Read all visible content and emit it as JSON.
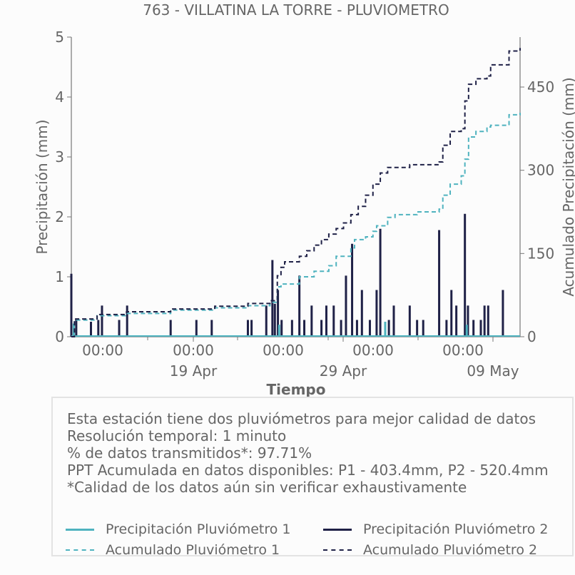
{
  "chart_data": {
    "type": "line",
    "title": "763 - VILLATINA LA TORRE - PLUVIOMETRO",
    "xlabel": "Tiempo",
    "ylabel_left": "Precipitación (mm)",
    "ylabel_right": "Acumulado Precipitación (mm)",
    "ylim_left": [
      0,
      5
    ],
    "ylim_right": [
      0,
      540
    ],
    "yticks_left": [
      "0",
      "1",
      "2",
      "3",
      "4",
      "5"
    ],
    "yticks_right": [
      "0",
      "150",
      "300",
      "450"
    ],
    "xlim": [
      "2025-04-11 00:00",
      "2025-05-11 12:00"
    ],
    "x_tick_times": [
      "00:00",
      "00:00",
      "00:00",
      "00:00",
      "00:00"
    ],
    "x_tick_dates": [
      "19 Apr",
      "29 Apr",
      "09 May"
    ],
    "colors": {
      "p1": "#4fb3bf",
      "p2": "#1f2147"
    },
    "series": [
      {
        "name": "Precipitación Pluviómetro 2",
        "kind": "bars",
        "points": [
          [
            "2025-04-11 00:00",
            1.05
          ],
          [
            "2025-04-11 08:00",
            0.3
          ],
          [
            "2025-04-12 08:00",
            0.25
          ],
          [
            "2025-04-12 20:00",
            0.28
          ],
          [
            "2025-04-13 02:00",
            0.52
          ],
          [
            "2025-04-14 06:00",
            0.28
          ],
          [
            "2025-04-14 19:00",
            0.52
          ],
          [
            "2025-04-17 18:00",
            0.28
          ],
          [
            "2025-04-19 12:00",
            0.28
          ],
          [
            "2025-04-20 13:00",
            0.28
          ],
          [
            "2025-04-23 00:00",
            0.28
          ],
          [
            "2025-04-23 06:00",
            0.28
          ],
          [
            "2025-04-24 06:00",
            0.52
          ],
          [
            "2025-04-24 16:00",
            1.28
          ],
          [
            "2025-04-24 20:00",
            0.55
          ],
          [
            "2025-04-25 01:00",
            0.78
          ],
          [
            "2025-04-25 07:00",
            0.28
          ],
          [
            "2025-04-26 00:00",
            0.28
          ],
          [
            "2025-04-26 12:00",
            1.02
          ],
          [
            "2025-04-26 20:00",
            0.28
          ],
          [
            "2025-04-27 08:00",
            0.52
          ],
          [
            "2025-04-28 00:00",
            0.28
          ],
          [
            "2025-04-28 08:00",
            0.52
          ],
          [
            "2025-04-28 20:00",
            0.52
          ],
          [
            "2025-04-29 08:00",
            0.28
          ],
          [
            "2025-04-29 16:00",
            1.02
          ],
          [
            "2025-04-30 02:00",
            1.55
          ],
          [
            "2025-04-30 10:00",
            0.28
          ],
          [
            "2025-04-30 18:00",
            0.78
          ],
          [
            "2025-05-01 07:00",
            0.28
          ],
          [
            "2025-05-01 18:00",
            0.78
          ],
          [
            "2025-05-02 00:00",
            1.8
          ],
          [
            "2025-05-02 14:00",
            0.28
          ],
          [
            "2025-05-02 22:00",
            0.52
          ],
          [
            "2025-05-04 00:00",
            0.52
          ],
          [
            "2025-05-04 12:00",
            0.28
          ],
          [
            "2025-05-04 22:00",
            0.28
          ],
          [
            "2025-05-06 00:00",
            1.78
          ],
          [
            "2025-05-06 12:00",
            0.28
          ],
          [
            "2025-05-06 20:00",
            0.78
          ],
          [
            "2025-05-07 04:00",
            0.52
          ],
          [
            "2025-05-07 18:00",
            2.05
          ],
          [
            "2025-05-07 23:00",
            0.52
          ],
          [
            "2025-05-08 08:00",
            0.28
          ],
          [
            "2025-05-08 20:00",
            0.28
          ],
          [
            "2025-05-09 02:00",
            0.52
          ],
          [
            "2025-05-09 08:00",
            0.52
          ],
          [
            "2025-05-10 08:00",
            0.78
          ]
        ]
      },
      {
        "name": "Precipitación Pluviómetro 1",
        "kind": "bars",
        "points": [
          [
            "2025-04-11 04:00",
            0.22
          ],
          [
            "2025-04-25 03:00",
            0.2
          ],
          [
            "2025-05-02 08:00",
            0.25
          ],
          [
            "2025-05-07 21:00",
            0.2
          ]
        ]
      },
      {
        "name": "Acumulado Pluviómetro 1",
        "kind": "dashed-step",
        "points": [
          [
            "2025-04-11 00:00",
            0
          ],
          [
            "2025-04-11 05:00",
            30
          ],
          [
            "2025-04-12 18:00",
            38
          ],
          [
            "2025-04-14 18:00",
            42
          ],
          [
            "2025-04-17 18:00",
            48
          ],
          [
            "2025-04-20 18:00",
            52
          ],
          [
            "2025-04-23 00:00",
            56
          ],
          [
            "2025-04-24 12:00",
            62
          ],
          [
            "2025-04-25 00:00",
            90
          ],
          [
            "2025-04-25 06:00",
            95
          ],
          [
            "2025-04-26 12:00",
            108
          ],
          [
            "2025-04-27 12:00",
            118
          ],
          [
            "2025-04-28 12:00",
            128
          ],
          [
            "2025-04-29 00:00",
            145
          ],
          [
            "2025-04-30 00:00",
            160
          ],
          [
            "2025-04-30 06:00",
            175
          ],
          [
            "2025-05-01 00:00",
            180
          ],
          [
            "2025-05-01 12:00",
            190
          ],
          [
            "2025-05-01 18:00",
            200
          ],
          [
            "2025-05-02 12:00",
            215
          ],
          [
            "2025-05-03 00:00",
            220
          ],
          [
            "2025-05-04 12:00",
            225
          ],
          [
            "2025-05-06 00:00",
            230
          ],
          [
            "2025-05-06 06:00",
            255
          ],
          [
            "2025-05-06 18:00",
            275
          ],
          [
            "2025-05-07 12:00",
            290
          ],
          [
            "2025-05-07 18:00",
            320
          ],
          [
            "2025-05-08 00:00",
            360
          ],
          [
            "2025-05-08 12:00",
            370
          ],
          [
            "2025-05-09 06:00",
            378
          ],
          [
            "2025-05-09 12:00",
            381
          ],
          [
            "2025-05-10 18:00",
            400
          ],
          [
            "2025-05-11 12:00",
            403.4
          ]
        ]
      },
      {
        "name": "Acumulado Pluviómetro 2",
        "kind": "dashed-step",
        "points": [
          [
            "2025-04-11 00:00",
            0
          ],
          [
            "2025-04-11 05:00",
            32
          ],
          [
            "2025-04-12 18:00",
            40
          ],
          [
            "2025-04-14 18:00",
            45
          ],
          [
            "2025-04-17 18:00",
            50
          ],
          [
            "2025-04-20 18:00",
            55
          ],
          [
            "2025-04-23 00:00",
            60
          ],
          [
            "2025-04-24 12:00",
            65
          ],
          [
            "2025-04-25 00:00",
            110
          ],
          [
            "2025-04-25 06:00",
            125
          ],
          [
            "2025-04-25 12:00",
            135
          ],
          [
            "2025-04-26 12:00",
            145
          ],
          [
            "2025-04-27 00:00",
            155
          ],
          [
            "2025-04-27 12:00",
            165
          ],
          [
            "2025-04-28 00:00",
            175
          ],
          [
            "2025-04-28 12:00",
            185
          ],
          [
            "2025-04-29 00:00",
            195
          ],
          [
            "2025-04-29 12:00",
            205
          ],
          [
            "2025-04-30 00:00",
            220
          ],
          [
            "2025-04-30 12:00",
            235
          ],
          [
            "2025-05-01 00:00",
            255
          ],
          [
            "2025-05-01 12:00",
            275
          ],
          [
            "2025-05-02 00:00",
            295
          ],
          [
            "2025-05-02 12:00",
            305
          ],
          [
            "2025-05-04 00:00",
            310
          ],
          [
            "2025-05-06 00:00",
            315
          ],
          [
            "2025-05-06 06:00",
            345
          ],
          [
            "2025-05-06 18:00",
            370
          ],
          [
            "2025-05-07 12:00",
            375
          ],
          [
            "2025-05-07 18:00",
            425
          ],
          [
            "2025-05-08 00:00",
            455
          ],
          [
            "2025-05-08 12:00",
            465
          ],
          [
            "2025-05-09 06:00",
            470
          ],
          [
            "2025-05-09 12:00",
            490
          ],
          [
            "2025-05-10 18:00",
            515
          ],
          [
            "2025-05-11 12:00",
            520.4
          ]
        ]
      }
    ],
    "grid": false
  },
  "info": {
    "line1": "Esta estación tiene dos pluviómetros para mejor calidad de datos",
    "line2": "Resolución temporal: 1 minuto",
    "line3": "% de datos transmitidos*: 97.71%",
    "line4": "PPT Acumulada en datos disponibles: P1 - 403.4mm, P2 - 520.4mm",
    "line5": "*Calidad de los datos aún sin verificar exhaustivamente"
  },
  "legend": {
    "p1_precip": "Precipitación Pluviómetro 1",
    "p2_precip": "Precipitación Pluviómetro 2",
    "p1_acum": "Acumulado Pluviómetro 1",
    "p2_acum": "Acumulado Pluviómetro 2"
  }
}
